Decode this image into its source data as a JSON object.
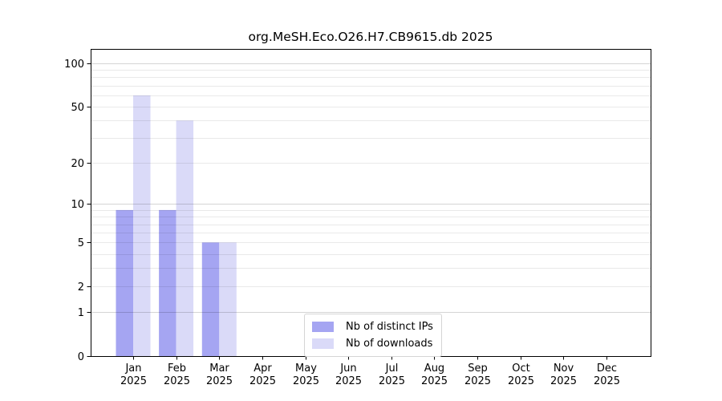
{
  "chart_data": {
    "type": "bar",
    "title": "org.MeSH.Eco.O26.H7.CB9615.db 2025",
    "categories": [
      "Jan",
      "Feb",
      "Mar",
      "Apr",
      "May",
      "Jun",
      "Jul",
      "Aug",
      "Sep",
      "Oct",
      "Nov",
      "Dec"
    ],
    "x_tick_second_line": "2025",
    "series": [
      {
        "name": "Nb of distinct IPs",
        "color": "#a5a5f2",
        "values": [
          9,
          9,
          5,
          0,
          0,
          0,
          0,
          0,
          0,
          0,
          0,
          0
        ]
      },
      {
        "name": "Nb of downloads",
        "color": "#dadaf8",
        "values": [
          60,
          40,
          5,
          0,
          0,
          0,
          0,
          0,
          0,
          0,
          0,
          0
        ]
      }
    ],
    "xlabel": "",
    "ylabel": "",
    "yscale": "log1p",
    "ylim": [
      0,
      126
    ],
    "y_tick_labels": [
      0,
      1,
      2,
      5,
      10,
      20,
      50,
      100
    ],
    "y_major_gridlines": [
      1,
      10,
      100
    ],
    "y_minor_gridlines": [
      2,
      3,
      4,
      5,
      6,
      7,
      8,
      9,
      20,
      30,
      40,
      50,
      60,
      70,
      80,
      90
    ],
    "grid": "horizontal",
    "legend_position": "lower-center-inside"
  },
  "colors": {
    "background": "#ffffff",
    "spine": "#000000",
    "legend_border": "#d5d5d5"
  }
}
